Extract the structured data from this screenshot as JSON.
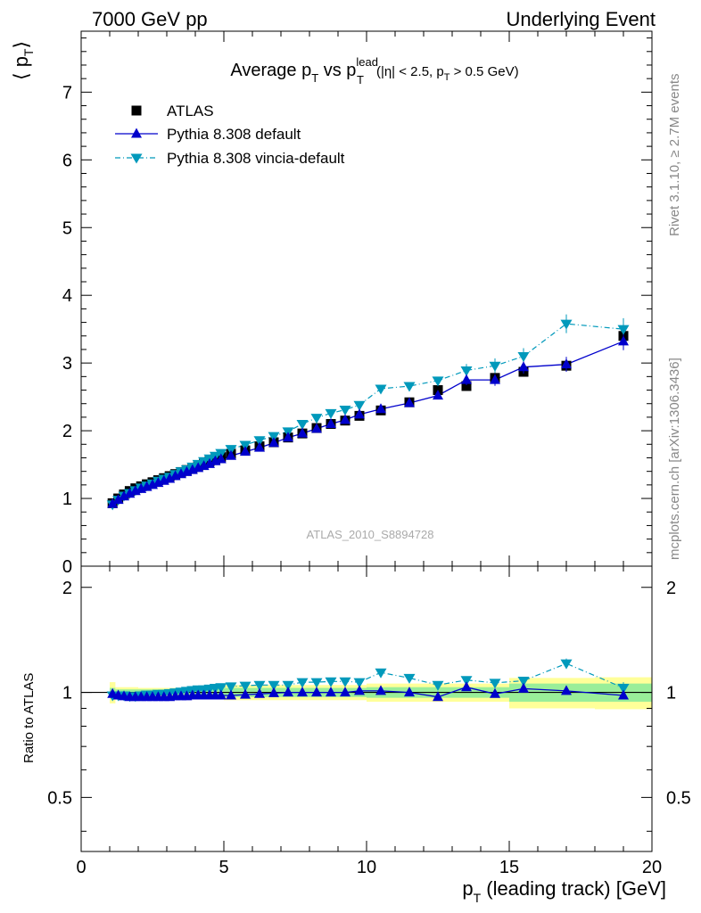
{
  "header": {
    "left": "7000 GeV pp",
    "right": "Underlying Event"
  },
  "side_labels": {
    "rivet": "Rivet 3.1.10, ≥ 2.7M events",
    "mcplots": "mcplots.cern.ch [arXiv:1306.3436]"
  },
  "watermark": "ATLAS_2010_S8894728",
  "chart_data": [
    {
      "type": "scatter",
      "title_parts": {
        "main": "Average p",
        "sub_T": "T",
        "vs": " vs p",
        "sup_lead": "lead",
        "cuts_a": "(|η| < 2.5, p",
        "cuts_b": " > 0.5 GeV)"
      },
      "ylabel": "⟨ p",
      "ylabel_sub": "T",
      "ylabel_close": "⟩",
      "xlim": [
        0,
        20
      ],
      "ylim": [
        0,
        7.9
      ],
      "yticks": [
        0,
        1,
        2,
        3,
        4,
        5,
        6,
        7
      ],
      "ytick_labels": [
        "0",
        "1",
        "2",
        "3",
        "4",
        "5",
        "6",
        "7"
      ],
      "grid": false,
      "legend_position": "top-left",
      "colors": {
        "atlas": "#000000",
        "default": "#0000cc",
        "vincia": "#0099bb"
      },
      "x": [
        1.1,
        1.3,
        1.5,
        1.7,
        1.9,
        2.1,
        2.3,
        2.5,
        2.7,
        2.9,
        3.1,
        3.3,
        3.5,
        3.7,
        3.9,
        4.1,
        4.3,
        4.5,
        4.7,
        4.9,
        5.25,
        5.75,
        6.25,
        6.75,
        7.25,
        7.75,
        8.25,
        8.75,
        9.25,
        9.75,
        10.5,
        11.5,
        12.5,
        13.5,
        14.5,
        15.5,
        17.0,
        19.0
      ],
      "series": [
        {
          "name": "ATLAS",
          "style": "black-square-markers",
          "values": [
            0.93,
            1.0,
            1.06,
            1.11,
            1.15,
            1.18,
            1.21,
            1.24,
            1.27,
            1.3,
            1.33,
            1.36,
            1.39,
            1.42,
            1.45,
            1.48,
            1.52,
            1.55,
            1.58,
            1.61,
            1.66,
            1.71,
            1.77,
            1.83,
            1.9,
            1.96,
            2.04,
            2.1,
            2.15,
            2.22,
            2.3,
            2.42,
            2.6,
            2.66,
            2.78,
            2.87,
            2.96,
            3.4
          ]
        },
        {
          "name": "Pythia 8.308 default",
          "style": "solid-line-triangle-up",
          "values": [
            0.92,
            0.98,
            1.03,
            1.07,
            1.11,
            1.14,
            1.17,
            1.2,
            1.23,
            1.26,
            1.29,
            1.33,
            1.36,
            1.39,
            1.42,
            1.45,
            1.48,
            1.51,
            1.55,
            1.58,
            1.63,
            1.69,
            1.75,
            1.82,
            1.9,
            1.96,
            2.03,
            2.1,
            2.16,
            2.24,
            2.32,
            2.41,
            2.52,
            2.75,
            2.75,
            2.94,
            2.98,
            3.32
          ]
        },
        {
          "name": "Pythia 8.308 vincia-default",
          "style": "dash-dot-line-triangle-down",
          "values": [
            0.91,
            0.98,
            1.04,
            1.08,
            1.12,
            1.16,
            1.19,
            1.22,
            1.26,
            1.29,
            1.32,
            1.36,
            1.4,
            1.43,
            1.47,
            1.51,
            1.55,
            1.59,
            1.63,
            1.67,
            1.73,
            1.79,
            1.86,
            1.92,
            1.99,
            2.1,
            2.19,
            2.26,
            2.31,
            2.38,
            2.62,
            2.66,
            2.74,
            2.89,
            2.96,
            3.1,
            3.58,
            3.5
          ]
        }
      ]
    },
    {
      "type": "scatter",
      "ylabel": "Ratio to ATLAS",
      "ylim": [
        0.35,
        2.3
      ],
      "yticks": [
        0.5,
        1,
        2
      ],
      "ytick_labels": [
        "0.5",
        "1",
        "2"
      ],
      "xlabel": "p",
      "xlabel_sub": "T",
      "xlabel_rest": " (leading track) [GeV]",
      "xlim": [
        0,
        20
      ],
      "xticks": [
        0,
        5,
        10,
        15,
        20
      ],
      "xtick_labels": [
        "0",
        "5",
        "10",
        "15",
        "20"
      ],
      "reference_line": 1,
      "bands": {
        "edges": [
          1,
          1.2,
          2,
          3,
          4,
          5,
          10,
          15,
          18,
          20
        ],
        "stat_yellow": [
          0.07,
          0.035,
          0.03,
          0.03,
          0.04,
          0.05,
          0.06,
          0.1,
          0.105
        ],
        "syst_green": [
          0.03,
          0.02,
          0.02,
          0.02,
          0.025,
          0.03,
          0.035,
          0.06,
          0.06
        ],
        "colors": {
          "yellow": "#ffff99",
          "green": "#99ee99"
        }
      },
      "series": [
        {
          "name": "Pythia 8.308 default",
          "values": [
            0.99,
            0.98,
            0.975,
            0.97,
            0.97,
            0.97,
            0.97,
            0.97,
            0.97,
            0.97,
            0.97,
            0.975,
            0.975,
            0.975,
            0.98,
            0.98,
            0.98,
            0.98,
            0.98,
            0.98,
            0.98,
            0.985,
            0.99,
            0.995,
            1.0,
            1.0,
            1.0,
            1.0,
            1.0,
            1.01,
            1.01,
            1.0,
            0.97,
            1.035,
            0.99,
            1.025,
            1.01,
            0.98
          ]
        },
        {
          "name": "Pythia 8.308 vincia-default",
          "values": [
            0.98,
            0.98,
            0.98,
            0.975,
            0.975,
            0.98,
            0.985,
            0.985,
            0.99,
            0.99,
            0.995,
            1.0,
            1.005,
            1.01,
            1.015,
            1.02,
            1.02,
            1.025,
            1.03,
            1.035,
            1.04,
            1.045,
            1.05,
            1.05,
            1.05,
            1.07,
            1.07,
            1.075,
            1.075,
            1.07,
            1.14,
            1.1,
            1.05,
            1.085,
            1.065,
            1.08,
            1.21,
            1.03
          ]
        }
      ]
    }
  ]
}
